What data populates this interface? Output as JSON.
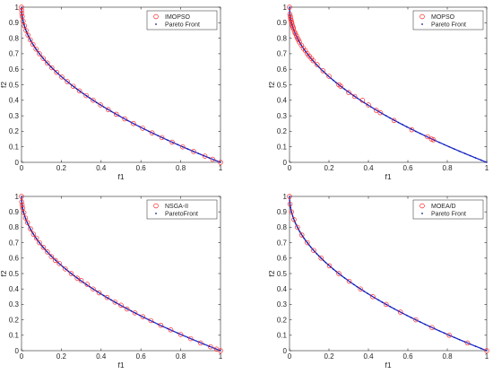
{
  "colors": {
    "front_line": "#1f2bd6",
    "front_points": "#0b1a8a",
    "algorithm_markers": "#ff2a2a",
    "axes": "#262626",
    "background": "#ffffff"
  },
  "chart_data": [
    {
      "type": "scatter",
      "xlabel": "f1",
      "ylabel": "f2",
      "xlim": [
        0,
        1
      ],
      "ylim": [
        0,
        1
      ],
      "xticks": [
        "0",
        "0.2",
        "0.4",
        "0.6",
        "0.8",
        "1"
      ],
      "yticks": [
        "0",
        "0.1",
        "0.2",
        "0.3",
        "0.4",
        "0.5",
        "0.6",
        "0.7",
        "0.8",
        "0.9",
        "1"
      ],
      "grid": false,
      "legend_position": "top-right",
      "series": [
        {
          "name": "IMOPSO",
          "marker": "circle",
          "points": [
            [
              0.0,
              1.0
            ],
            [
              0.0004,
              0.98
            ],
            [
              0.0016,
              0.96
            ],
            [
              0.0036,
              0.94
            ],
            [
              0.0081,
              0.91
            ],
            [
              0.0144,
              0.88
            ],
            [
              0.0225,
              0.85
            ],
            [
              0.0324,
              0.82
            ],
            [
              0.0441,
              0.79
            ],
            [
              0.0576,
              0.76
            ],
            [
              0.0729,
              0.73
            ],
            [
              0.09,
              0.7
            ],
            [
              0.1089,
              0.67
            ],
            [
              0.1296,
              0.64
            ],
            [
              0.1521,
              0.61
            ],
            [
              0.1764,
              0.58
            ],
            [
              0.2025,
              0.55
            ],
            [
              0.2304,
              0.52
            ],
            [
              0.2601,
              0.49
            ],
            [
              0.2916,
              0.46
            ],
            [
              0.3249,
              0.43
            ],
            [
              0.36,
              0.4
            ],
            [
              0.3969,
              0.37
            ],
            [
              0.4356,
              0.34
            ],
            [
              0.4761,
              0.31
            ],
            [
              0.5184,
              0.28
            ],
            [
              0.5625,
              0.25
            ],
            [
              0.6084,
              0.22
            ],
            [
              0.6561,
              0.19
            ],
            [
              0.7056,
              0.16
            ],
            [
              0.7569,
              0.13
            ],
            [
              0.81,
              0.1
            ],
            [
              0.8649,
              0.07
            ],
            [
              0.9216,
              0.04
            ],
            [
              0.9604,
              0.02
            ],
            [
              1.0,
              0.0
            ]
          ]
        },
        {
          "name": "Pareto Front",
          "marker": "dot-line"
        }
      ]
    },
    {
      "type": "scatter",
      "xlabel": "f1",
      "ylabel": "f2",
      "xlim": [
        0,
        1
      ],
      "ylim": [
        0,
        1
      ],
      "xticks": [
        "0",
        "0.2",
        "0.4",
        "0.6",
        "0.8",
        "1"
      ],
      "yticks": [
        "0",
        "0.1",
        "0.2",
        "0.3",
        "0.4",
        "0.5",
        "0.6",
        "0.7",
        "0.8",
        "0.9",
        "1"
      ],
      "grid": false,
      "legend_position": "top-right",
      "series": [
        {
          "name": "MOPSO",
          "marker": "circle",
          "points": [
            [
              0.0,
              1.0
            ],
            [
              0.002,
              0.955
            ],
            [
              0.004,
              0.94
            ],
            [
              0.006,
              0.925
            ],
            [
              0.008,
              0.915
            ],
            [
              0.01,
              0.905
            ],
            [
              0.012,
              0.895
            ],
            [
              0.015,
              0.88
            ],
            [
              0.018,
              0.87
            ],
            [
              0.02,
              0.86
            ],
            [
              0.025,
              0.84
            ],
            [
              0.03,
              0.83
            ],
            [
              0.035,
              0.815
            ],
            [
              0.04,
              0.8
            ],
            [
              0.045,
              0.79
            ],
            [
              0.05,
              0.775
            ],
            [
              0.06,
              0.755
            ],
            [
              0.07,
              0.735
            ],
            [
              0.08,
              0.72
            ],
            [
              0.09,
              0.7
            ],
            [
              0.1,
              0.685
            ],
            [
              0.11,
              0.67
            ],
            [
              0.12,
              0.655
            ],
            [
              0.14,
              0.63
            ],
            [
              0.17,
              0.59
            ],
            [
              0.2,
              0.555
            ],
            [
              0.25,
              0.5
            ],
            [
              0.26,
              0.49
            ],
            [
              0.3,
              0.45
            ],
            [
              0.33,
              0.425
            ],
            [
              0.37,
              0.4
            ],
            [
              0.4,
              0.37
            ],
            [
              0.44,
              0.335
            ],
            [
              0.46,
              0.32
            ],
            [
              0.53,
              0.27
            ],
            [
              0.62,
              0.21
            ],
            [
              0.7,
              0.165
            ],
            [
              0.72,
              0.15
            ],
            [
              0.73,
              0.145
            ]
          ]
        },
        {
          "name": "Pareto Front",
          "marker": "dot-line"
        }
      ]
    },
    {
      "type": "scatter",
      "xlabel": "f1",
      "ylabel": "f2",
      "xlim": [
        0,
        1
      ],
      "ylim": [
        0,
        1
      ],
      "xticks": [
        "0",
        "0.2",
        "0.4",
        "0.6",
        "0.8",
        "1"
      ],
      "yticks": [
        "0",
        "0.1",
        "0.2",
        "0.3",
        "0.4",
        "0.5",
        "0.6",
        "0.7",
        "0.8",
        "0.9",
        "1"
      ],
      "grid": false,
      "legend_position": "top-right",
      "series": [
        {
          "name": "NSGA-II",
          "marker": "circle",
          "points": [
            [
              0.0,
              1.0
            ],
            [
              0.001,
              0.965
            ],
            [
              0.003,
              0.945
            ],
            [
              0.006,
              0.925
            ],
            [
              0.012,
              0.895
            ],
            [
              0.02,
              0.86
            ],
            [
              0.03,
              0.83
            ],
            [
              0.045,
              0.79
            ],
            [
              0.06,
              0.755
            ],
            [
              0.075,
              0.73
            ],
            [
              0.09,
              0.7
            ],
            [
              0.11,
              0.67
            ],
            [
              0.13,
              0.64
            ],
            [
              0.15,
              0.61
            ],
            [
              0.17,
              0.585
            ],
            [
              0.19,
              0.565
            ],
            [
              0.22,
              0.53
            ],
            [
              0.25,
              0.5
            ],
            [
              0.28,
              0.47
            ],
            [
              0.3,
              0.455
            ],
            [
              0.33,
              0.43
            ],
            [
              0.36,
              0.4
            ],
            [
              0.39,
              0.375
            ],
            [
              0.43,
              0.345
            ],
            [
              0.47,
              0.315
            ],
            [
              0.5,
              0.295
            ],
            [
              0.53,
              0.27
            ],
            [
              0.57,
              0.245
            ],
            [
              0.61,
              0.22
            ],
            [
              0.65,
              0.195
            ],
            [
              0.7,
              0.165
            ],
            [
              0.75,
              0.135
            ],
            [
              0.8,
              0.105
            ],
            [
              0.85,
              0.078
            ],
            [
              0.9,
              0.05
            ],
            [
              0.95,
              0.025
            ],
            [
              0.98,
              0.01
            ],
            [
              1.0,
              0.0
            ]
          ]
        },
        {
          "name": "ParetoFront",
          "marker": "dot-line"
        }
      ]
    },
    {
      "type": "scatter",
      "xlabel": "f1",
      "ylabel": "f2",
      "xlim": [
        0,
        1
      ],
      "ylim": [
        0,
        1
      ],
      "xticks": [
        "0",
        "0.2",
        "0.4",
        "0.6",
        "0.8",
        "1"
      ],
      "yticks": [
        "0",
        "0.1",
        "0.2",
        "0.3",
        "0.4",
        "0.5",
        "0.6",
        "0.7",
        "0.8",
        "0.9",
        "1"
      ],
      "grid": false,
      "legend_position": "top-right",
      "series": [
        {
          "name": "MOEA/D",
          "marker": "circle",
          "points": [
            [
              0.0,
              1.0
            ],
            [
              0.0025,
              0.95
            ],
            [
              0.01,
              0.9
            ],
            [
              0.0225,
              0.85
            ],
            [
              0.04,
              0.8
            ],
            [
              0.0625,
              0.75
            ],
            [
              0.09,
              0.7
            ],
            [
              0.1225,
              0.65
            ],
            [
              0.16,
              0.6
            ],
            [
              0.2025,
              0.55
            ],
            [
              0.25,
              0.5
            ],
            [
              0.3025,
              0.45
            ],
            [
              0.36,
              0.4
            ],
            [
              0.4225,
              0.35
            ],
            [
              0.49,
              0.3
            ],
            [
              0.5625,
              0.25
            ],
            [
              0.64,
              0.2
            ],
            [
              0.7225,
              0.15
            ],
            [
              0.81,
              0.1
            ],
            [
              0.9025,
              0.05
            ],
            [
              1.0,
              0.0
            ]
          ]
        },
        {
          "name": "Pareto Front",
          "marker": "dot-line"
        }
      ]
    }
  ]
}
